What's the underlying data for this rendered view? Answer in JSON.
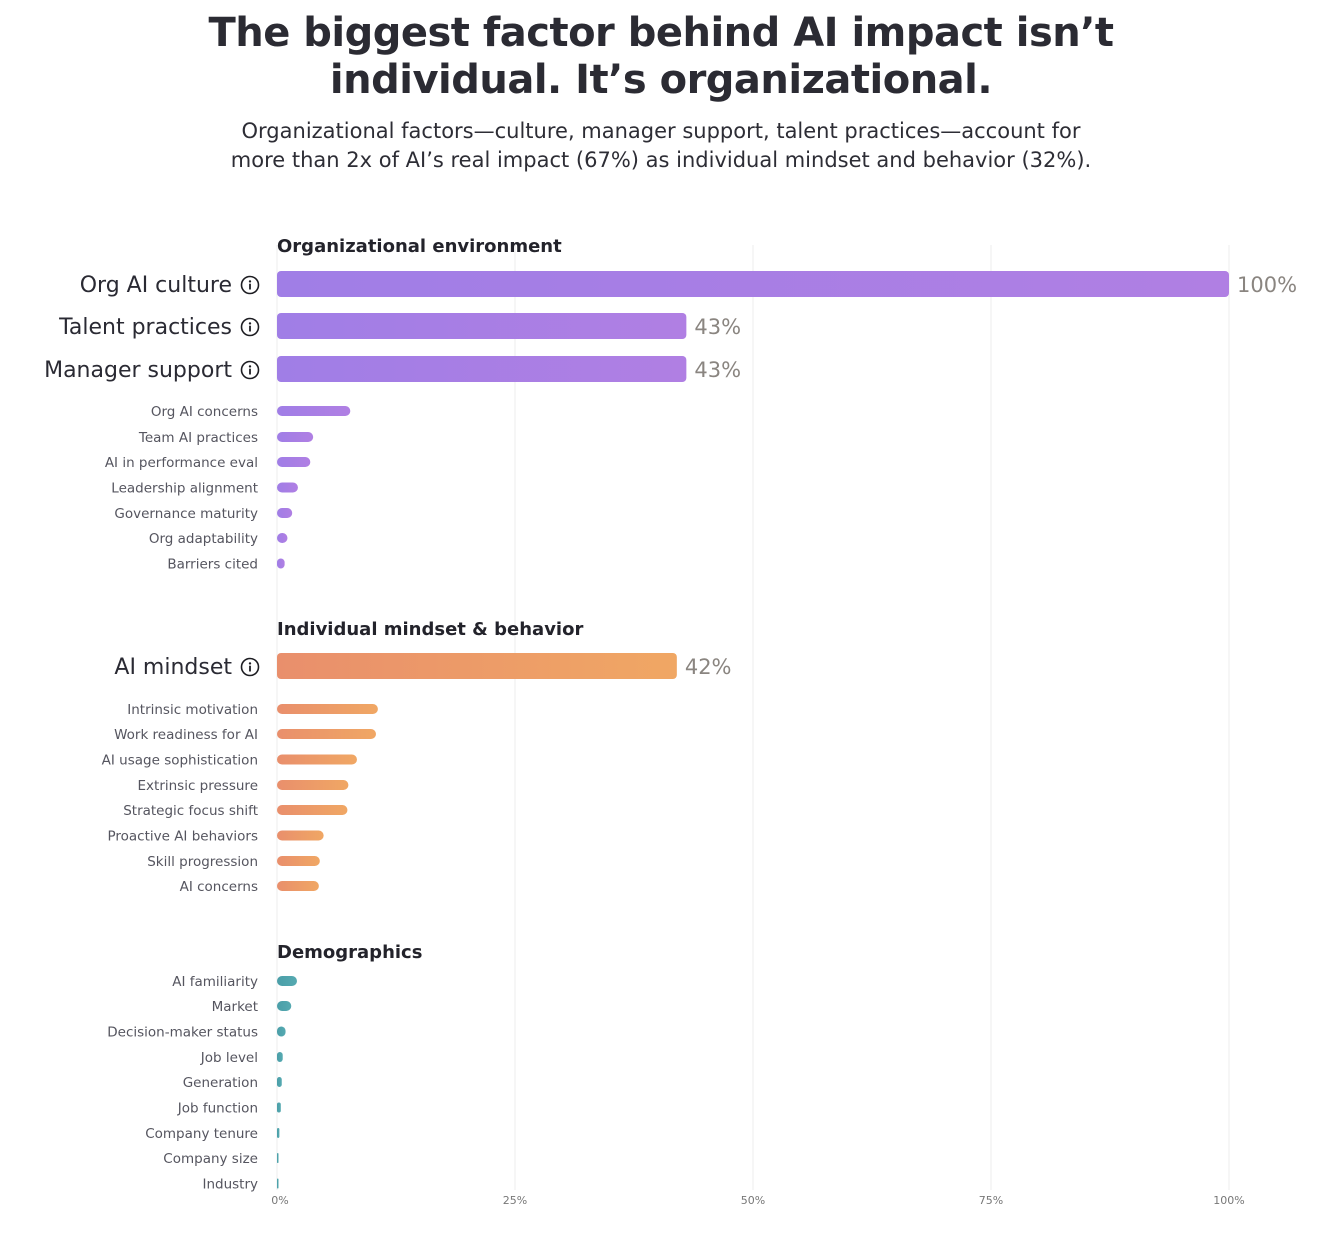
{
  "header": {
    "title_line1": "The biggest factor behind AI impact isn’t",
    "title_line2": "individual. It’s organizational.",
    "subtitle_line1": "Organizational factors—culture, manager support, talent practices—account for",
    "subtitle_line2": "more than 2x of AI’s real impact (67%) as individual mindset and behavior (32%)."
  },
  "chart_data": {
    "type": "bar",
    "orientation": "horizontal",
    "xlim": [
      0,
      100
    ],
    "x_ticks": [
      "0%",
      "25%",
      "50%",
      "75%",
      "100%"
    ],
    "grid": true,
    "info_icon": "info-circle-icon",
    "sections": [
      {
        "name": "Organizational environment",
        "color_start": "#a07ee6",
        "color_end": "#b07fe3",
        "items": [
          {
            "label": "Org AI culture",
            "value": 100,
            "value_label": "100%",
            "major": true
          },
          {
            "label": "Talent practices",
            "value": 43,
            "value_label": "43%",
            "major": true
          },
          {
            "label": "Manager support",
            "value": 43,
            "value_label": "43%",
            "major": true
          },
          {
            "label": "Org AI concerns",
            "value": 7.7
          },
          {
            "label": "Team AI practices",
            "value": 3.8
          },
          {
            "label": "AI in performance eval",
            "value": 3.5
          },
          {
            "label": "Leadership alignment",
            "value": 2.2
          },
          {
            "label": "Governance maturity",
            "value": 1.6
          },
          {
            "label": "Org adaptability",
            "value": 1.1
          },
          {
            "label": "Barriers cited",
            "value": 0.8
          }
        ]
      },
      {
        "name": "Individual mindset & behavior",
        "color_start": "#e98f6c",
        "color_end": "#f0a764",
        "items": [
          {
            "label": "AI mindset",
            "value": 42,
            "value_label": "42%",
            "major": true
          },
          {
            "label": "Intrinsic motivation",
            "value": 10.6
          },
          {
            "label": "Work readiness for AI",
            "value": 10.4
          },
          {
            "label": "AI usage sophistication",
            "value": 8.4
          },
          {
            "label": "Extrinsic pressure",
            "value": 7.5
          },
          {
            "label": "Strategic focus shift",
            "value": 7.4
          },
          {
            "label": "Proactive AI behaviors",
            "value": 4.9
          },
          {
            "label": "Skill progression",
            "value": 4.5
          },
          {
            "label": "AI concerns",
            "value": 4.4
          }
        ]
      },
      {
        "name": "Demographics",
        "color_start": "#4a9ea8",
        "color_end": "#56aab1",
        "items": [
          {
            "label": "AI familiarity",
            "value": 2.1
          },
          {
            "label": "Market",
            "value": 1.5
          },
          {
            "label": "Decision-maker status",
            "value": 0.9
          },
          {
            "label": "Job level",
            "value": 0.6
          },
          {
            "label": "Generation",
            "value": 0.5
          },
          {
            "label": "Job function",
            "value": 0.4
          },
          {
            "label": "Company tenure",
            "value": 0.25
          },
          {
            "label": "Company size",
            "value": 0.15
          },
          {
            "label": "Industry",
            "value": 0.1
          }
        ]
      }
    ]
  }
}
